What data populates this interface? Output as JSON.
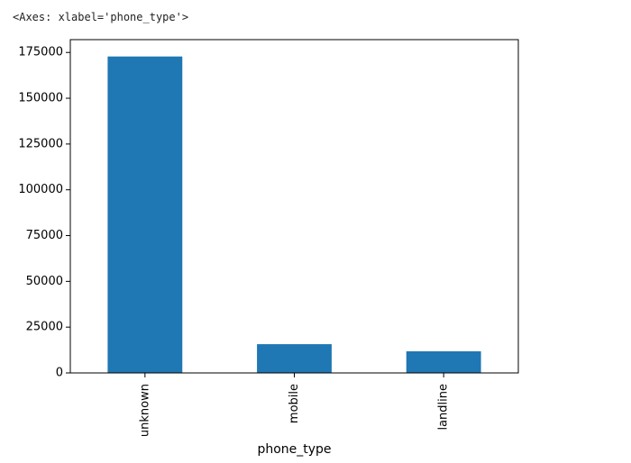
{
  "output_text": "<Axes: xlabel='phone_type'>",
  "colors": {
    "bar": "#1f77b4",
    "axis": "#000000"
  },
  "chart_data": {
    "type": "bar",
    "categories": [
      "unknown",
      "mobile",
      "landline"
    ],
    "values": [
      172800,
      15700,
      11800
    ],
    "xlabel": "phone_type",
    "ylabel": "",
    "ylim": [
      0,
      182000
    ],
    "yticks": [
      0,
      25000,
      50000,
      75000,
      100000,
      125000,
      150000,
      175000
    ],
    "ytick_labels": [
      "0",
      "25000",
      "50000",
      "75000",
      "100000",
      "125000",
      "150000",
      "175000"
    ],
    "xtick_rotation": "vertical",
    "grid": false,
    "legend": "none"
  }
}
